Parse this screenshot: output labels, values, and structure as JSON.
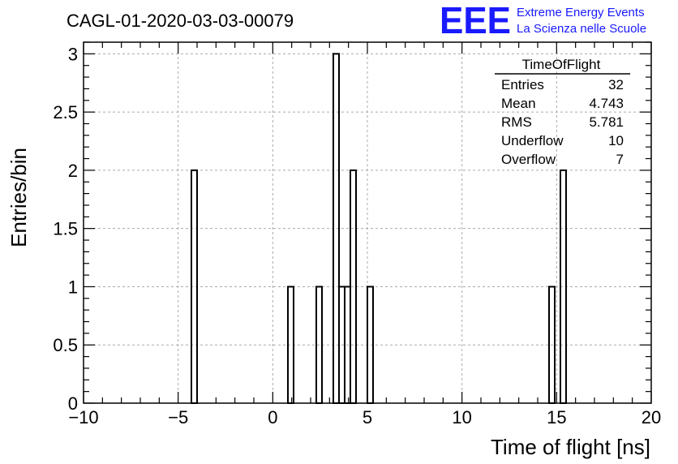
{
  "title": "CAGL-01-2020-03-03-00079",
  "logo": {
    "letters": "EEE",
    "line1": "Extreme Energy Events",
    "line2": "La Scienza nelle Scuole",
    "color": "#1a1aff"
  },
  "stats_box": {
    "name": "TimeOfFlight",
    "rows": [
      {
        "label": "Entries",
        "value": "32"
      },
      {
        "label": "Mean",
        "value": "4.743"
      },
      {
        "label": "RMS",
        "value": "5.781"
      },
      {
        "label": "Underflow",
        "value": "10"
      },
      {
        "label": "Overflow",
        "value": "7"
      }
    ]
  },
  "chart_data": {
    "type": "bar",
    "histogram": true,
    "xlabel": "Time of flight [ns]",
    "ylabel": "Entries/bin",
    "xlim": [
      -10,
      20
    ],
    "ylim": [
      0,
      3.1
    ],
    "grid": true,
    "x_ticks": [
      "−10",
      "−5",
      "0",
      "5",
      "10",
      "15",
      "20"
    ],
    "y_ticks": [
      "0",
      "0.5",
      "1",
      "1.5",
      "2",
      "2.5",
      "3"
    ],
    "bin_width": 0.3,
    "bins": [
      {
        "x_low": -4.3,
        "value": 2
      },
      {
        "x_low": 0.8,
        "value": 1
      },
      {
        "x_low": 2.3,
        "value": 1
      },
      {
        "x_low": 3.2,
        "value": 3
      },
      {
        "x_low": 3.5,
        "value": 1
      },
      {
        "x_low": 3.8,
        "value": 1
      },
      {
        "x_low": 4.1,
        "value": 2
      },
      {
        "x_low": 5.0,
        "value": 1
      },
      {
        "x_low": 14.6,
        "value": 1
      },
      {
        "x_low": 15.2,
        "value": 2
      }
    ]
  }
}
